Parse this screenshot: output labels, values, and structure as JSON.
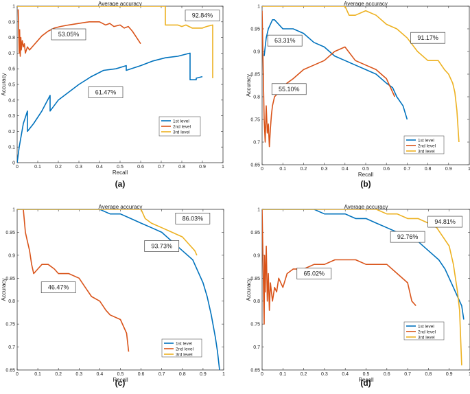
{
  "chart_data": [
    {
      "type": "line",
      "panel": "(a)",
      "title": "Average accuracy",
      "xlabel": "Recall",
      "ylabel": "Accuracy",
      "xlim": [
        0,
        1
      ],
      "ylim": [
        0,
        1
      ],
      "xticks": [
        "0",
        "0.1",
        "0.2",
        "0.3",
        "0.4",
        "0.5",
        "0.6",
        "0.7",
        "0.8",
        "0.9",
        "1"
      ],
      "yticks": [
        "0",
        "0.1",
        "0.2",
        "0.3",
        "0.4",
        "0.5",
        "0.6",
        "0.7",
        "0.8",
        "0.9",
        "1"
      ],
      "legend": [
        "1st level",
        "2nd level",
        "3rd level"
      ],
      "annotations": [
        {
          "text": "53.05%",
          "x": 0.25,
          "y": 0.82
        },
        {
          "text": "61.47%",
          "x": 0.43,
          "y": 0.45
        },
        {
          "text": "92.84%",
          "x": 0.9,
          "y": 0.94
        }
      ],
      "series": [
        {
          "name": "1st level",
          "color": "#0072BD",
          "x": [
            0,
            0.01,
            0.03,
            0.05,
            0.05,
            0.08,
            0.12,
            0.16,
            0.16,
            0.2,
            0.25,
            0.3,
            0.36,
            0.42,
            0.48,
            0.53,
            0.53,
            0.6,
            0.66,
            0.72,
            0.78,
            0.84,
            0.84,
            0.87,
            0.87,
            0.9
          ],
          "y": [
            0,
            0.1,
            0.25,
            0.33,
            0.2,
            0.25,
            0.33,
            0.43,
            0.33,
            0.4,
            0.45,
            0.5,
            0.55,
            0.59,
            0.6,
            0.62,
            0.59,
            0.62,
            0.65,
            0.67,
            0.68,
            0.7,
            0.53,
            0.53,
            0.54,
            0.55
          ]
        },
        {
          "name": "2nd level",
          "color": "#D95319",
          "x": [
            0.005,
            0.01,
            0.012,
            0.015,
            0.018,
            0.02,
            0.025,
            0.03,
            0.035,
            0.04,
            0.05,
            0.06,
            0.08,
            0.1,
            0.12,
            0.15,
            0.18,
            0.21,
            0.25,
            0.3,
            0.35,
            0.4,
            0.43,
            0.45,
            0.47,
            0.5,
            0.52,
            0.54,
            0.56,
            0.58,
            0.6
          ],
          "y": [
            0.98,
            0.7,
            0.85,
            0.68,
            0.8,
            0.72,
            0.78,
            0.74,
            0.76,
            0.7,
            0.74,
            0.72,
            0.75,
            0.78,
            0.81,
            0.84,
            0.86,
            0.87,
            0.88,
            0.89,
            0.9,
            0.9,
            0.88,
            0.89,
            0.87,
            0.88,
            0.86,
            0.87,
            0.84,
            0.8,
            0.76
          ]
        },
        {
          "name": "3rd level",
          "color": "#EDB120",
          "x": [
            0.0,
            0.02,
            0.7,
            0.72,
            0.72,
            0.78,
            0.8,
            0.82,
            0.85,
            0.9,
            0.92,
            0.95,
            0.95
          ],
          "y": [
            1,
            1,
            1,
            1,
            0.88,
            0.88,
            0.87,
            0.88,
            0.86,
            0.86,
            0.87,
            0.88,
            0.54
          ]
        }
      ]
    },
    {
      "type": "line",
      "panel": "(b)",
      "title": "Average accuracy",
      "xlabel": "Recall",
      "ylabel": "Accuracy",
      "xlim": [
        0,
        1
      ],
      "ylim": [
        0.65,
        1
      ],
      "xticks": [
        "0",
        "0.1",
        "0.2",
        "0.3",
        "0.4",
        "0.5",
        "0.6",
        "0.7",
        "0.8",
        "0.9",
        "1"
      ],
      "yticks": [
        "0.65",
        "0.7",
        "0.75",
        "0.8",
        "0.85",
        "0.9",
        "0.95",
        "1"
      ],
      "legend": [
        "1st level",
        "2nd level",
        "3rd level"
      ],
      "annotations": [
        {
          "text": "63.31%",
          "x": 0.11,
          "y": 0.924
        },
        {
          "text": "55.10%",
          "x": 0.13,
          "y": 0.817
        },
        {
          "text": "91.17%",
          "x": 0.8,
          "y": 0.93
        }
      ],
      "series": [
        {
          "name": "1st level",
          "color": "#0072BD",
          "x": [
            0.01,
            0.02,
            0.03,
            0.04,
            0.05,
            0.06,
            0.08,
            0.1,
            0.12,
            0.15,
            0.2,
            0.25,
            0.3,
            0.35,
            0.4,
            0.45,
            0.5,
            0.55,
            0.6,
            0.63,
            0.65,
            0.68,
            0.7
          ],
          "y": [
            0.89,
            0.93,
            0.95,
            0.96,
            0.97,
            0.97,
            0.96,
            0.95,
            0.95,
            0.95,
            0.94,
            0.92,
            0.91,
            0.89,
            0.88,
            0.87,
            0.86,
            0.85,
            0.83,
            0.82,
            0.8,
            0.78,
            0.75
          ]
        },
        {
          "name": "2nd level",
          "color": "#D95319",
          "x": [
            0.0,
            0.01,
            0.015,
            0.02,
            0.025,
            0.03,
            0.035,
            0.04,
            0.045,
            0.05,
            0.06,
            0.08,
            0.1,
            0.12,
            0.15,
            0.2,
            0.25,
            0.3,
            0.35,
            0.4,
            0.45,
            0.5,
            0.55,
            0.6,
            0.64
          ],
          "y": [
            0.99,
            0.75,
            0.7,
            0.78,
            0.72,
            0.74,
            0.69,
            0.73,
            0.76,
            0.78,
            0.8,
            0.81,
            0.82,
            0.83,
            0.84,
            0.86,
            0.87,
            0.88,
            0.9,
            0.91,
            0.88,
            0.87,
            0.86,
            0.84,
            0.8
          ]
        },
        {
          "name": "3rd level",
          "color": "#EDB120",
          "x": [
            0.0,
            0.4,
            0.42,
            0.45,
            0.5,
            0.55,
            0.6,
            0.65,
            0.7,
            0.75,
            0.8,
            0.85,
            0.88,
            0.9,
            0.92,
            0.93,
            0.94,
            0.95
          ],
          "y": [
            1,
            1,
            0.98,
            0.98,
            0.99,
            0.98,
            0.96,
            0.95,
            0.93,
            0.9,
            0.88,
            0.88,
            0.86,
            0.85,
            0.83,
            0.81,
            0.77,
            0.7
          ]
        }
      ]
    },
    {
      "type": "line",
      "panel": "(c)",
      "title": "Average accuracy",
      "xlabel": "Recall",
      "ylabel": "Accuracy",
      "xlim": [
        0,
        1
      ],
      "ylim": [
        0.65,
        1
      ],
      "xticks": [
        "0",
        "0.1",
        "0.2",
        "0.3",
        "0.4",
        "0.5",
        "0.6",
        "0.7",
        "0.8",
        "0.9",
        "1"
      ],
      "yticks": [
        "0.65",
        "0.7",
        "0.75",
        "0.8",
        "0.85",
        "0.9",
        "0.95",
        "1"
      ],
      "legend": [
        "1st level",
        "2nd level",
        "3rd level"
      ],
      "annotations": [
        {
          "text": "86.03%",
          "x": 0.85,
          "y": 0.98
        },
        {
          "text": "93.73%",
          "x": 0.7,
          "y": 0.92
        },
        {
          "text": "46.47%",
          "x": 0.2,
          "y": 0.83
        }
      ],
      "series": [
        {
          "name": "1st level",
          "color": "#0072BD",
          "x": [
            0.0,
            0.4,
            0.45,
            0.5,
            0.55,
            0.6,
            0.65,
            0.7,
            0.75,
            0.8,
            0.85,
            0.88,
            0.9,
            0.92,
            0.94,
            0.96,
            0.97,
            0.98
          ],
          "y": [
            1,
            1,
            0.99,
            0.99,
            0.98,
            0.97,
            0.96,
            0.95,
            0.93,
            0.91,
            0.89,
            0.86,
            0.84,
            0.81,
            0.77,
            0.72,
            0.69,
            0.65
          ]
        },
        {
          "name": "2nd level",
          "color": "#D95319",
          "x": [
            0.03,
            0.04,
            0.05,
            0.06,
            0.07,
            0.08,
            0.1,
            0.12,
            0.15,
            0.18,
            0.2,
            0.25,
            0.3,
            0.33,
            0.36,
            0.4,
            0.43,
            0.45,
            0.5,
            0.53,
            0.54
          ],
          "y": [
            1,
            0.95,
            0.93,
            0.91,
            0.88,
            0.86,
            0.87,
            0.88,
            0.88,
            0.87,
            0.86,
            0.86,
            0.85,
            0.83,
            0.81,
            0.8,
            0.78,
            0.77,
            0.76,
            0.73,
            0.69
          ]
        },
        {
          "name": "3rd level",
          "color": "#EDB120",
          "x": [
            0.0,
            0.6,
            0.62,
            0.65,
            0.7,
            0.75,
            0.8,
            0.84,
            0.86,
            0.87
          ],
          "y": [
            1,
            1,
            0.98,
            0.97,
            0.96,
            0.95,
            0.94,
            0.92,
            0.91,
            0.9
          ]
        }
      ]
    },
    {
      "type": "line",
      "panel": "(d)",
      "title": "Average accuracy",
      "xlabel": "Recall",
      "ylabel": "Accuracy",
      "xlim": [
        0,
        1
      ],
      "ylim": [
        0.65,
        1
      ],
      "xticks": [
        "0",
        "0.1",
        "0.2",
        "0.3",
        "0.4",
        "0.5",
        "0.6",
        "0.7",
        "0.8",
        "0.9",
        "1"
      ],
      "yticks": [
        "0.65",
        "0.7",
        "0.75",
        "0.8",
        "0.85",
        "0.9",
        "0.95",
        "1"
      ],
      "legend": [
        "1st level",
        "2nd level",
        "3rd level"
      ],
      "annotations": [
        {
          "text": "94.81%",
          "x": 0.88,
          "y": 0.973
        },
        {
          "text": "92.76%",
          "x": 0.7,
          "y": 0.94
        },
        {
          "text": "65.02%",
          "x": 0.25,
          "y": 0.86
        }
      ],
      "series": [
        {
          "name": "1st level",
          "color": "#0072BD",
          "x": [
            0.0,
            0.25,
            0.3,
            0.4,
            0.45,
            0.5,
            0.55,
            0.6,
            0.65,
            0.7,
            0.75,
            0.8,
            0.85,
            0.88,
            0.9,
            0.92,
            0.94,
            0.96,
            0.97
          ],
          "y": [
            1,
            1,
            0.99,
            0.99,
            0.98,
            0.98,
            0.97,
            0.96,
            0.95,
            0.94,
            0.93,
            0.91,
            0.89,
            0.87,
            0.85,
            0.83,
            0.81,
            0.79,
            0.76
          ]
        },
        {
          "name": "2nd level",
          "color": "#D95319",
          "x": [
            0.0,
            0.01,
            0.012,
            0.015,
            0.02,
            0.025,
            0.03,
            0.035,
            0.04,
            0.05,
            0.06,
            0.07,
            0.08,
            0.1,
            0.12,
            0.15,
            0.2,
            0.25,
            0.3,
            0.35,
            0.4,
            0.45,
            0.5,
            0.55,
            0.6,
            0.65,
            0.7,
            0.72,
            0.74
          ],
          "y": [
            1,
            0.75,
            0.9,
            0.82,
            0.92,
            0.8,
            0.86,
            0.78,
            0.84,
            0.8,
            0.83,
            0.82,
            0.85,
            0.83,
            0.86,
            0.87,
            0.87,
            0.88,
            0.88,
            0.89,
            0.89,
            0.89,
            0.88,
            0.88,
            0.88,
            0.86,
            0.84,
            0.8,
            0.79
          ]
        },
        {
          "name": "3rd level",
          "color": "#EDB120",
          "x": [
            0.0,
            0.55,
            0.6,
            0.65,
            0.7,
            0.75,
            0.8,
            0.84,
            0.87,
            0.9,
            0.92,
            0.93,
            0.94,
            0.95,
            0.96
          ],
          "y": [
            1,
            1,
            0.99,
            0.99,
            0.98,
            0.98,
            0.97,
            0.96,
            0.94,
            0.92,
            0.88,
            0.85,
            0.82,
            0.78,
            0.66
          ]
        }
      ]
    }
  ]
}
